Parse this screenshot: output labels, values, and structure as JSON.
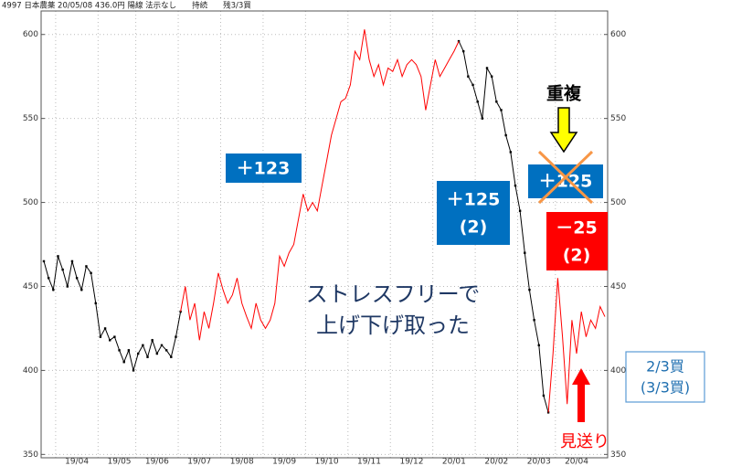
{
  "chart_data": {
    "type": "line",
    "title": "4997 日本農薬 20/05/08 436.0円 陽線 法示なし　　持続　　残3/3買",
    "categories": [
      null,
      null,
      null,
      null,
      null,
      null,
      null,
      "19/04",
      null,
      null,
      null,
      null,
      null,
      null,
      null,
      null,
      "19/05",
      null,
      null,
      null,
      null,
      null,
      null,
      null,
      "19/06",
      null,
      null,
      null,
      null,
      null,
      null,
      null,
      null,
      "19/07",
      null,
      null,
      null,
      null,
      null,
      null,
      null,
      null,
      "19/08",
      null,
      null,
      null,
      null,
      null,
      null,
      null,
      null,
      "19/09",
      null,
      null,
      null,
      null,
      null,
      null,
      null,
      null,
      "19/10",
      null,
      null,
      null,
      null,
      null,
      null,
      null,
      null,
      "19/11",
      null,
      null,
      null,
      null,
      null,
      null,
      null,
      null,
      "19/12",
      null,
      null,
      null,
      null,
      null,
      null,
      null,
      null,
      "20/01",
      null,
      null,
      null,
      null,
      null,
      null,
      null,
      null,
      "20/02",
      null,
      null,
      null,
      null,
      null,
      null,
      null,
      null,
      "20/03",
      null,
      null,
      null,
      null,
      null,
      null,
      null,
      "20/04",
      null,
      null,
      null,
      null,
      null,
      null
    ],
    "series": [
      {
        "color": "#000000",
        "markers": true,
        "values": [
          465,
          455,
          448,
          468,
          460,
          450,
          465,
          455,
          448,
          462,
          458,
          440,
          420,
          425,
          418,
          420,
          412,
          405,
          412,
          400,
          410,
          415,
          408,
          418,
          410,
          415,
          412,
          408,
          420,
          435,
          null,
          null,
          null,
          null,
          null,
          null,
          null,
          null,
          null,
          null,
          null,
          null,
          null,
          null,
          null,
          null,
          null,
          null,
          null,
          null,
          null,
          null,
          null,
          null,
          null,
          null,
          null,
          null,
          null,
          null,
          null,
          null,
          null,
          null,
          null,
          null,
          null,
          null,
          null,
          null,
          null,
          null,
          null,
          null,
          null,
          null,
          null,
          null,
          null,
          null,
          null,
          null,
          null,
          null,
          null,
          null,
          null,
          null,
          596,
          590,
          575,
          570,
          560,
          550,
          580,
          575,
          560,
          555,
          540,
          530,
          510,
          495,
          470,
          448,
          430,
          415,
          385,
          375,
          null,
          null,
          null,
          null,
          null,
          null,
          null,
          null,
          null,
          null,
          null,
          null
        ]
      },
      {
        "color": "#ff0000",
        "markers": false,
        "values": [
          null,
          null,
          null,
          null,
          null,
          null,
          null,
          null,
          null,
          null,
          null,
          null,
          null,
          null,
          null,
          null,
          null,
          null,
          null,
          null,
          null,
          null,
          null,
          null,
          null,
          null,
          null,
          null,
          null,
          435,
          450,
          430,
          440,
          418,
          435,
          425,
          440,
          458,
          448,
          440,
          445,
          455,
          440,
          432,
          425,
          440,
          430,
          425,
          430,
          440,
          468,
          462,
          470,
          475,
          490,
          505,
          495,
          500,
          495,
          510,
          525,
          540,
          550,
          560,
          562,
          570,
          590,
          585,
          603,
          585,
          575,
          582,
          570,
          580,
          578,
          585,
          575,
          582,
          585,
          582,
          575,
          555,
          570,
          585,
          575,
          580,
          585,
          590,
          596,
          null,
          null,
          null,
          null,
          null,
          null,
          null,
          null,
          null,
          null,
          null,
          null,
          null,
          null,
          null,
          null,
          null,
          null,
          375,
          410,
          455,
          420,
          380,
          430,
          410,
          435,
          420,
          430,
          425,
          438,
          432
        ]
      }
    ],
    "ylim": [
      348,
      614
    ],
    "yticks": [
      350,
      400,
      450,
      500,
      550,
      600
    ],
    "grid": true,
    "annotations": [
      [
        "＋123"
      ],
      [
        "＋125",
        "(2)"
      ],
      [
        "重複"
      ],
      [
        "＋125"
      ],
      [
        "－25",
        "(2)"
      ],
      [
        "ストレスフリーで",
        "上げ下げ取った"
      ],
      [
        "2/3買",
        "(3/3買)"
      ],
      [
        "見送り"
      ]
    ]
  }
}
